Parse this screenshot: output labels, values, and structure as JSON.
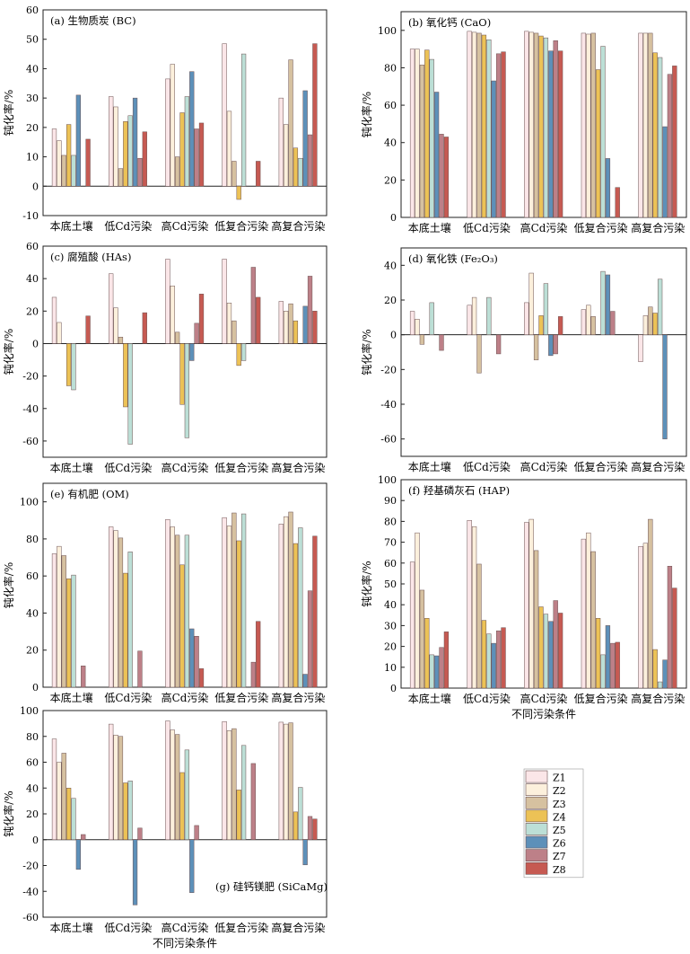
{
  "series_names": [
    "Z1",
    "Z2",
    "Z3",
    "Z4",
    "Z5",
    "Z6",
    "Z7",
    "Z8"
  ],
  "colors": [
    "#fbe6e8",
    "#fcf0dc",
    "#d6c1a0",
    "#ecc256",
    "#bcdfd6",
    "#5d90b9",
    "#bd8088",
    "#c65a52"
  ],
  "legend_position": "bottom-right",
  "chart_data": [
    {
      "type": "bar",
      "title": "(a) 生物质炭 (BC)",
      "ylabel": "钝化率/%",
      "xlabel": "",
      "ylim": [
        -10,
        60
      ],
      "yticks": [
        -10,
        0,
        10,
        20,
        30,
        40,
        50,
        60
      ],
      "categories": [
        "本底土壤",
        "低Cd污染",
        "高Cd污染",
        "低复合污染",
        "高复合污染"
      ],
      "series": [
        {
          "name": "Z1",
          "values": [
            19.5,
            30.5,
            36.5,
            48.5,
            30.0
          ]
        },
        {
          "name": "Z2",
          "values": [
            15.5,
            27.0,
            41.5,
            25.5,
            21.0
          ]
        },
        {
          "name": "Z3",
          "values": [
            10.5,
            6.0,
            10.0,
            8.5,
            43.0
          ]
        },
        {
          "name": "Z4",
          "values": [
            21.0,
            22.0,
            25.0,
            -4.5,
            13.0
          ]
        },
        {
          "name": "Z5",
          "values": [
            10.5,
            24.0,
            30.5,
            45.0,
            9.5
          ]
        },
        {
          "name": "Z6",
          "values": [
            31.0,
            30.0,
            39.0,
            0,
            32.5
          ]
        },
        {
          "name": "Z7",
          "values": [
            0,
            9.5,
            19.5,
            0,
            17.5
          ]
        },
        {
          "name": "Z8",
          "values": [
            16.0,
            18.5,
            21.5,
            8.5,
            48.5
          ]
        }
      ]
    },
    {
      "type": "bar",
      "title": "(b) 氧化钙 (CaO)",
      "ylabel": "钝化率/%",
      "xlabel": "",
      "ylim": [
        0,
        110
      ],
      "yticks": [
        0,
        20,
        40,
        60,
        80,
        100
      ],
      "categories": [
        "本底土壤",
        "低Cd污染",
        "高Cd污染",
        "低复合污染",
        "高复合污染"
      ],
      "series": [
        {
          "name": "Z1",
          "values": [
            90.0,
            99.5,
            99.5,
            98.5,
            98.5
          ]
        },
        {
          "name": "Z2",
          "values": [
            90.0,
            99.0,
            99.0,
            98.0,
            98.5
          ]
        },
        {
          "name": "Z3",
          "values": [
            81.5,
            98.5,
            98.5,
            98.5,
            98.5
          ]
        },
        {
          "name": "Z4",
          "values": [
            89.5,
            97.5,
            97.0,
            79.0,
            88.0
          ]
        },
        {
          "name": "Z5",
          "values": [
            84.5,
            95.0,
            96.0,
            91.5,
            85.5
          ]
        },
        {
          "name": "Z6",
          "values": [
            67.0,
            73.0,
            89.0,
            31.5,
            48.5
          ]
        },
        {
          "name": "Z7",
          "values": [
            44.5,
            87.5,
            94.5,
            0,
            76.5
          ]
        },
        {
          "name": "Z8",
          "values": [
            43.0,
            88.5,
            89.0,
            16.0,
            81.0
          ]
        }
      ]
    },
    {
      "type": "bar",
      "title": "(c) 腐殖酸 (HAs)",
      "ylabel": "钝化率/%",
      "xlabel": "",
      "ylim": [
        -70,
        60
      ],
      "yticks": [
        -60,
        -40,
        -20,
        0,
        20,
        40,
        60
      ],
      "categories": [
        "本底土壤",
        "低Cd污染",
        "高Cd污染",
        "低复合污染",
        "高复合污染"
      ],
      "series": [
        {
          "name": "Z1",
          "values": [
            28.5,
            43.0,
            52.0,
            52.0,
            26.0
          ]
        },
        {
          "name": "Z2",
          "values": [
            13.0,
            22.0,
            35.5,
            25.0,
            20.0
          ]
        },
        {
          "name": "Z3",
          "values": [
            0,
            4.0,
            7.0,
            14.0,
            24.5
          ]
        },
        {
          "name": "Z4",
          "values": [
            -26.0,
            -39.0,
            -37.5,
            -13.5,
            14.0
          ]
        },
        {
          "name": "Z5",
          "values": [
            -28.5,
            -62.0,
            -58.0,
            -10.5,
            0
          ]
        },
        {
          "name": "Z6",
          "values": [
            0,
            0,
            -10.5,
            0,
            23.0
          ]
        },
        {
          "name": "Z7",
          "values": [
            0,
            0,
            12.5,
            47.0,
            41.5
          ]
        },
        {
          "name": "Z8",
          "values": [
            17.0,
            19.0,
            30.5,
            28.5,
            20.0
          ]
        }
      ]
    },
    {
      "type": "bar",
      "title": "(d) 氧化铁 (Fe₂O₃)",
      "ylabel": "钝化率/%",
      "xlabel": "",
      "ylim": [
        -70,
        50
      ],
      "yticks": [
        -60,
        -40,
        -20,
        0,
        20,
        40
      ],
      "categories": [
        "本底土壤",
        "低Cd污染",
        "高Cd污染",
        "低复合污染",
        "高复合污染"
      ],
      "series": [
        {
          "name": "Z1",
          "values": [
            13.5,
            17.0,
            18.5,
            14.5,
            -15.5
          ]
        },
        {
          "name": "Z2",
          "values": [
            9.0,
            21.5,
            35.5,
            17.0,
            11.0
          ]
        },
        {
          "name": "Z3",
          "values": [
            -5.5,
            -22.0,
            -14.5,
            10.5,
            16.0
          ]
        },
        {
          "name": "Z4",
          "values": [
            0,
            0,
            11.0,
            0,
            12.5
          ]
        },
        {
          "name": "Z5",
          "values": [
            18.5,
            21.5,
            29.5,
            36.5,
            32.0
          ]
        },
        {
          "name": "Z6",
          "values": [
            0,
            0,
            -12.0,
            34.5,
            -60.0
          ]
        },
        {
          "name": "Z7",
          "values": [
            -9.0,
            -11.0,
            -11.0,
            13.5,
            0
          ]
        },
        {
          "name": "Z8",
          "values": [
            0,
            0,
            10.5,
            0,
            0
          ]
        }
      ]
    },
    {
      "type": "bar",
      "title": "(e) 有机肥 (OM)",
      "ylabel": "钝化率/%",
      "xlabel": "",
      "ylim": [
        0,
        110
      ],
      "yticks": [
        0,
        20,
        40,
        60,
        80,
        100
      ],
      "categories": [
        "本底土壤",
        "低Cd污染",
        "高Cd污染",
        "低复合污染",
        "高复合污染"
      ],
      "series": [
        {
          "name": "Z1",
          "values": [
            72.0,
            86.5,
            90.5,
            91.5,
            88.0
          ]
        },
        {
          "name": "Z2",
          "values": [
            76.0,
            84.5,
            86.5,
            87.0,
            92.0
          ]
        },
        {
          "name": "Z3",
          "values": [
            71.0,
            80.5,
            82.0,
            94.0,
            94.5
          ]
        },
        {
          "name": "Z4",
          "values": [
            58.5,
            61.5,
            66.0,
            79.0,
            77.5
          ]
        },
        {
          "name": "Z5",
          "values": [
            60.5,
            73.0,
            82.0,
            93.5,
            86.0
          ]
        },
        {
          "name": "Z6",
          "values": [
            0,
            0,
            31.5,
            0,
            7.0
          ]
        },
        {
          "name": "Z7",
          "values": [
            11.5,
            19.5,
            27.5,
            13.5,
            52.0
          ]
        },
        {
          "name": "Z8",
          "values": [
            0,
            0,
            10.0,
            35.5,
            81.5
          ]
        }
      ]
    },
    {
      "type": "bar",
      "title": "(f) 羟基磷灰石 (HAP)",
      "ylabel": "钝化率/%",
      "xlabel": "不同污染条件",
      "ylim": [
        0,
        100
      ],
      "yticks": [
        0,
        10,
        20,
        30,
        40,
        50,
        60,
        70,
        80,
        90,
        100
      ],
      "categories": [
        "本底土壤",
        "低Cd污染",
        "高Cd污染",
        "低复合污染",
        "高复合污染"
      ],
      "series": [
        {
          "name": "Z1",
          "values": [
            60.5,
            80.5,
            79.5,
            71.5,
            68.0
          ]
        },
        {
          "name": "Z2",
          "values": [
            74.5,
            77.5,
            81.0,
            74.5,
            69.5
          ]
        },
        {
          "name": "Z3",
          "values": [
            47.0,
            59.5,
            66.0,
            65.5,
            81.0
          ]
        },
        {
          "name": "Z4",
          "values": [
            33.5,
            32.5,
            39.0,
            33.5,
            18.5
          ]
        },
        {
          "name": "Z5",
          "values": [
            16.0,
            26.0,
            35.5,
            16.0,
            3.0
          ]
        },
        {
          "name": "Z6",
          "values": [
            15.5,
            21.5,
            32.0,
            30.0,
            13.5
          ]
        },
        {
          "name": "Z7",
          "values": [
            19.5,
            27.5,
            42.0,
            21.5,
            58.5
          ]
        },
        {
          "name": "Z8",
          "values": [
            27.0,
            29.0,
            36.0,
            22.0,
            48.0
          ]
        }
      ]
    },
    {
      "type": "bar",
      "title": "(g) 硅钙镁肥 (SiCaMg)",
      "ylabel": "钝化率/%",
      "xlabel": "不同污染条件",
      "ylim": [
        -60,
        100
      ],
      "yticks": [
        -60,
        -40,
        -20,
        0,
        20,
        40,
        60,
        80,
        100
      ],
      "categories": [
        "本底土壤",
        "低Cd污染",
        "高Cd污染",
        "低复合污染",
        "高复合污染"
      ],
      "series": [
        {
          "name": "Z1",
          "values": [
            78.0,
            89.5,
            92.0,
            91.5,
            91.0
          ]
        },
        {
          "name": "Z2",
          "values": [
            60.0,
            81.0,
            85.0,
            84.5,
            89.5
          ]
        },
        {
          "name": "Z3",
          "values": [
            67.0,
            80.0,
            81.5,
            86.0,
            90.5
          ]
        },
        {
          "name": "Z4",
          "values": [
            40.0,
            44.0,
            52.0,
            38.5,
            21.5
          ]
        },
        {
          "name": "Z5",
          "values": [
            32.0,
            45.5,
            69.5,
            73.0,
            40.5
          ]
        },
        {
          "name": "Z6",
          "values": [
            -23.0,
            -50.5,
            -41.0,
            0,
            -19.5
          ]
        },
        {
          "name": "Z7",
          "values": [
            4.0,
            9.0,
            11.0,
            59.0,
            18.0
          ]
        },
        {
          "name": "Z8",
          "values": [
            0,
            0,
            0,
            0,
            16.0
          ]
        }
      ]
    }
  ]
}
